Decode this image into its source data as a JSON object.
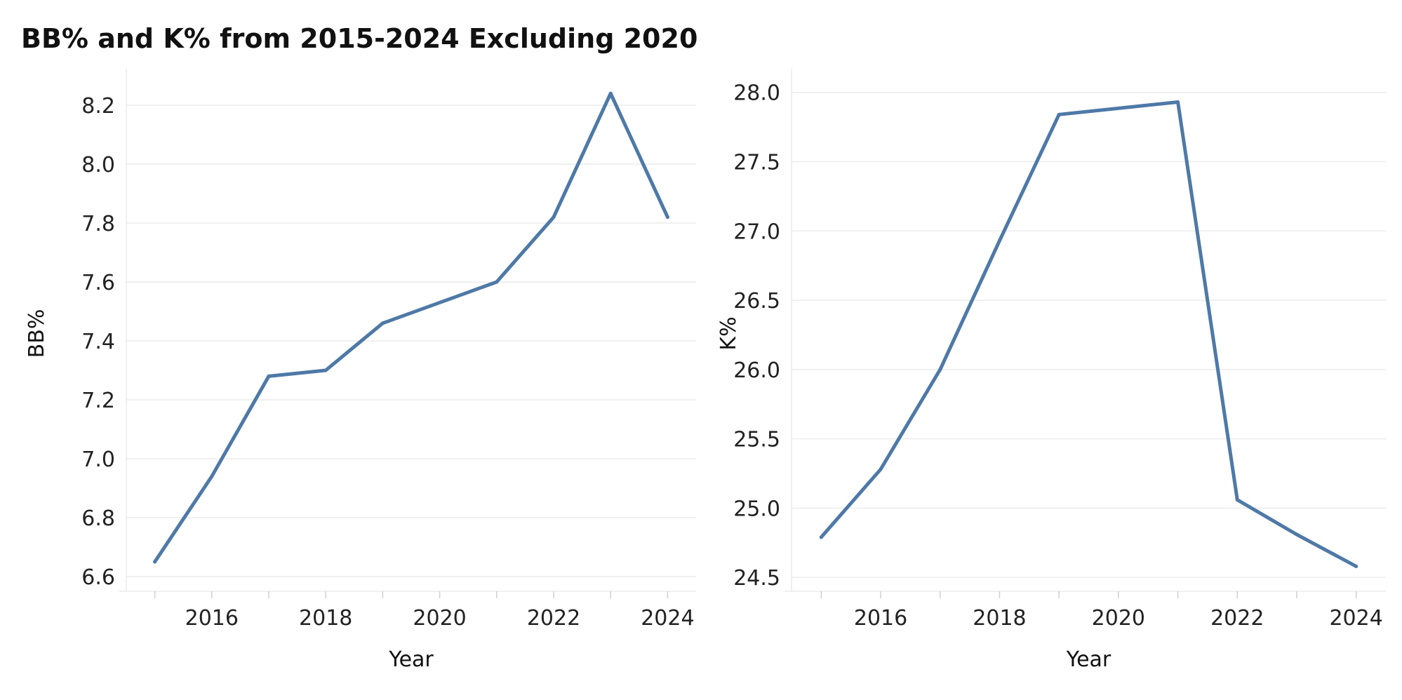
{
  "figure": {
    "title": "BB% and K% from 2015-2024 Excluding 2020"
  },
  "chart_data": [
    {
      "type": "line",
      "title": "",
      "xlabel": "Year",
      "ylabel": "BB%",
      "x": [
        2015,
        2016,
        2017,
        2018,
        2019,
        2021,
        2022,
        2023,
        2024
      ],
      "series": [
        {
          "values": [
            6.65,
            6.94,
            7.28,
            7.3,
            7.46,
            7.6,
            7.82,
            8.24,
            7.82
          ]
        }
      ],
      "xlim": [
        2014.5,
        2024.5
      ],
      "ylim": [
        6.55,
        8.3
      ],
      "xticks": [
        2016,
        2018,
        2020,
        2022,
        2024
      ],
      "xticks_minor": [
        2015,
        2017,
        2019,
        2021,
        2023
      ],
      "yticks": [
        6.6,
        6.8,
        7.0,
        7.2,
        7.4,
        7.6,
        7.8,
        8.0,
        8.2
      ],
      "ytick_labels": [
        "6.6",
        "6.8",
        "7.0",
        "7.2",
        "7.4",
        "7.6",
        "7.8",
        "8.0",
        "8.2"
      ],
      "grid": true,
      "color": "#4e79a7"
    },
    {
      "type": "line",
      "title": "",
      "xlabel": "Year",
      "ylabel": "K%",
      "x": [
        2015,
        2016,
        2017,
        2018,
        2019,
        2021,
        2022,
        2023,
        2024
      ],
      "series": [
        {
          "values": [
            24.79,
            25.28,
            26.0,
            26.93,
            27.84,
            27.93,
            25.06,
            24.81,
            24.58
          ]
        }
      ],
      "xlim": [
        2014.5,
        2024.5
      ],
      "ylim": [
        24.4,
        28.12
      ],
      "xticks": [
        2016,
        2018,
        2020,
        2022,
        2024
      ],
      "xticks_minor": [
        2015,
        2017,
        2019,
        2021,
        2023
      ],
      "yticks": [
        24.5,
        25.0,
        25.5,
        26.0,
        26.5,
        27.0,
        27.5,
        28.0
      ],
      "ytick_labels": [
        "24.5",
        "25.0",
        "25.5",
        "26.0",
        "26.5",
        "27.0",
        "27.5",
        "28.0"
      ],
      "grid": true,
      "color": "#4e79a7"
    }
  ]
}
